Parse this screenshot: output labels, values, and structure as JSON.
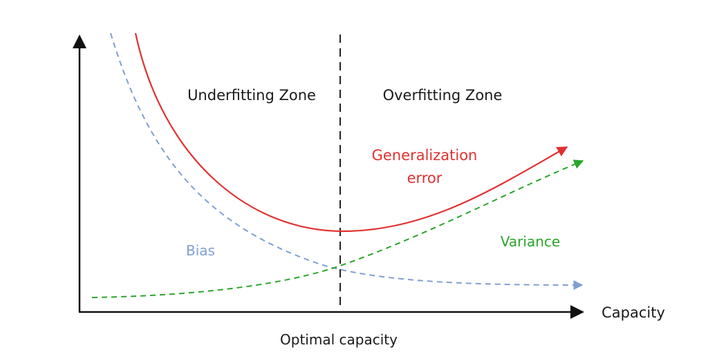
{
  "labels": {
    "underfitting_zone": "Underfitting Zone",
    "overfitting_zone": "Overfitting Zone",
    "generalization_error_line1": "Generalization",
    "generalization_error_line2": "error",
    "variance": "Variance",
    "bias": "Bias",
    "capacity": "Capacity",
    "optimal_capacity": "Optimal capacity"
  },
  "colors": {
    "generalization_error": "#e03030",
    "variance": "#2aa52a",
    "bias": "#7f9fd2",
    "axis": "#111111",
    "divider": "#222222",
    "text": "#1a1a1a"
  }
}
